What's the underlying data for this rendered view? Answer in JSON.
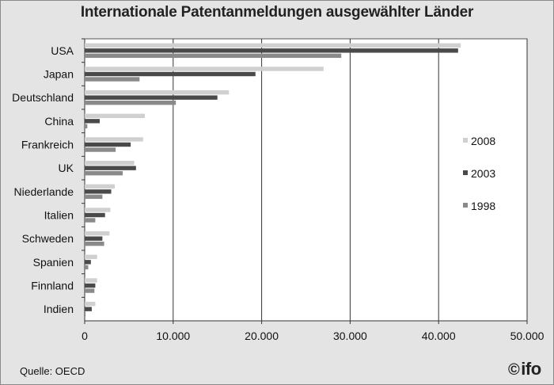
{
  "chart_data": {
    "type": "bar",
    "orientation": "horizontal",
    "title": "Internationale Patentanmeldungen ausgewählter Länder",
    "categories": [
      "USA",
      "Japan",
      "Deutschland",
      "China",
      "Frankreich",
      "UK",
      "Niederlande",
      "Italien",
      "Schweden",
      "Spanien",
      "Finnland",
      "Indien"
    ],
    "series": [
      {
        "name": "2008",
        "color": "#d0d0d0",
        "values": [
          42500,
          27000,
          16300,
          6800,
          6600,
          5600,
          3400,
          2900,
          2800,
          1400,
          1400,
          1200
        ]
      },
      {
        "name": "2003",
        "color": "#4a4a4a",
        "values": [
          42200,
          19300,
          15000,
          1700,
          5200,
          5800,
          3000,
          2300,
          2000,
          700,
          1200,
          800
        ]
      },
      {
        "name": "1998",
        "color": "#8a8a8a",
        "values": [
          29000,
          6200,
          10300,
          300,
          3500,
          4300,
          2000,
          1200,
          2200,
          400,
          1100,
          100
        ]
      }
    ],
    "xlim": [
      0,
      50000
    ],
    "xticks": [
      0,
      10000,
      20000,
      30000,
      40000,
      50000
    ],
    "xtick_labels": [
      "0",
      "10.000",
      "20.000",
      "30.000",
      "40.000",
      "50.000"
    ],
    "xlabel": "",
    "ylabel": "",
    "grid": "vertical",
    "legend_position": "right",
    "plot_background": "#ffffff"
  },
  "footer": {
    "source": "Quelle: OECD",
    "logo_text": "ifo",
    "logo_symbol": "©"
  }
}
